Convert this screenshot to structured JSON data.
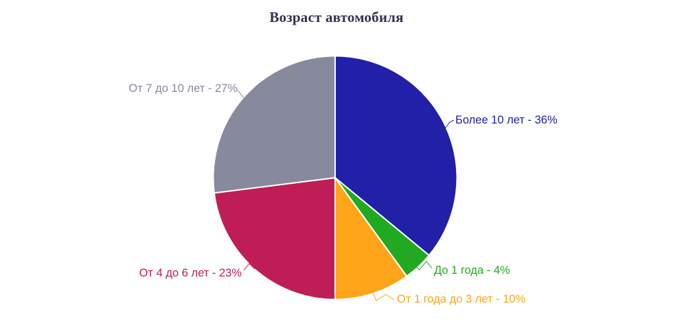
{
  "chart_data": {
    "type": "pie",
    "title": "Возраст автомобиля",
    "unit": "%",
    "legend": "none",
    "label_position": "outside",
    "slice_border_color": "#FFFFFF",
    "background_color": "#FFFFFF",
    "title_color": "#33334E",
    "slices": [
      {
        "label": "Более 10 лет",
        "value": 36,
        "display": "Более 10 лет - 36%",
        "color": "#2120A7"
      },
      {
        "label": "До 1 года",
        "value": 4,
        "display": "До 1 года - 4%",
        "color": "#21AA21"
      },
      {
        "label": "От 1 года до 3 лет",
        "value": 10,
        "display": "От 1 года до 3 лет - 10%",
        "color": "#FFA519"
      },
      {
        "label": "От 4 до 6 лет",
        "value": 23,
        "display": "От 4 до 6 лет - 23%",
        "color": "#BE1D55"
      },
      {
        "label": "От 7 до 10 лет",
        "value": 27,
        "display": "От 7 до 10 лет - 27%",
        "color": "#878A9C"
      }
    ]
  }
}
